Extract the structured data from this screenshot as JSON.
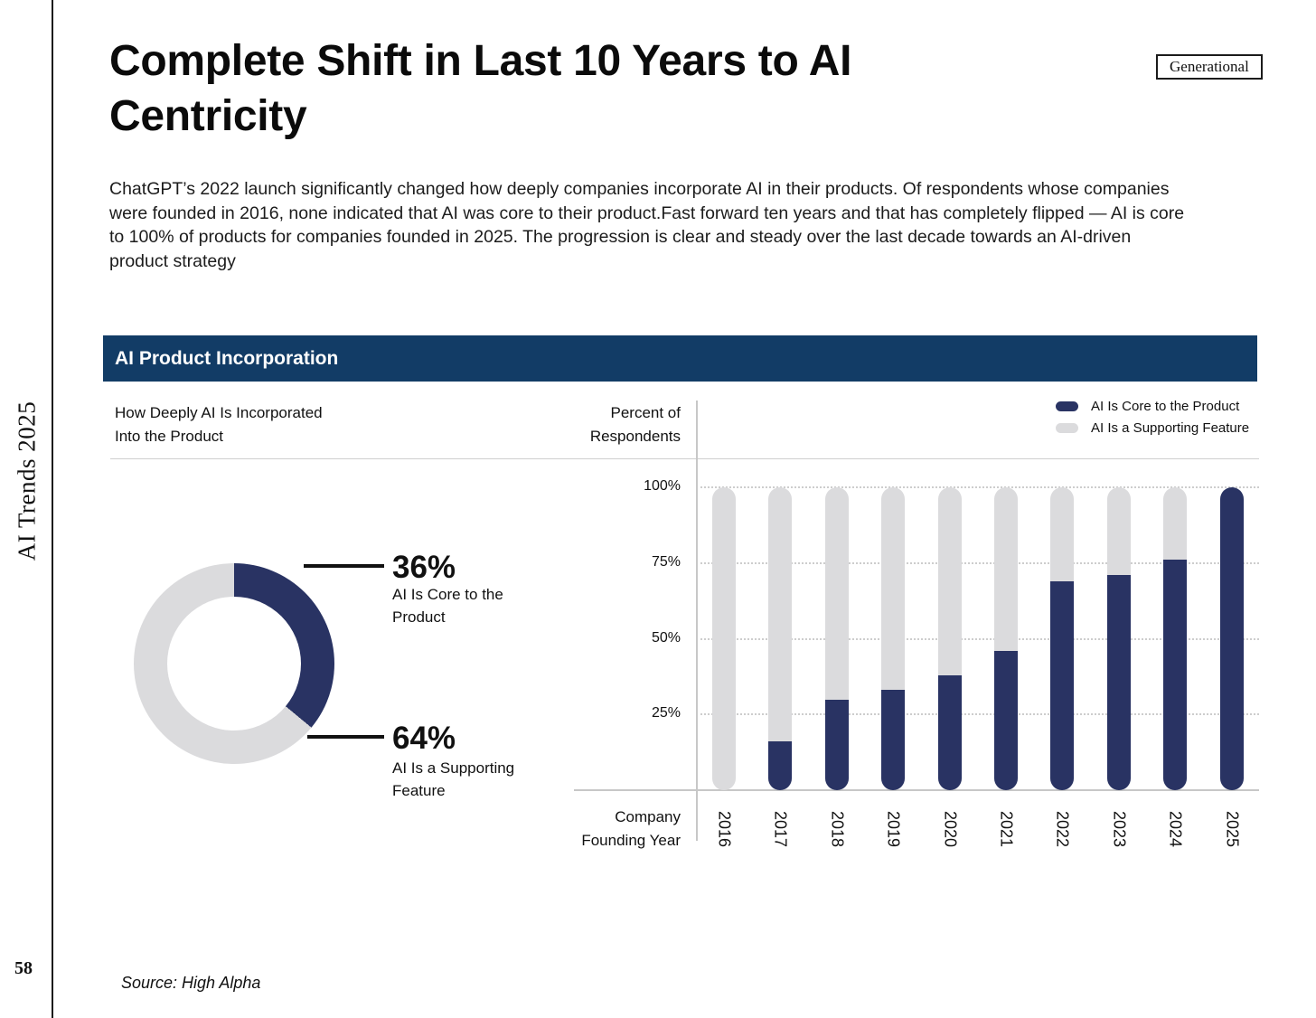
{
  "page": {
    "sidebar_title": "AI Trends 2025",
    "number": "58"
  },
  "badge_label": "Generational",
  "title": "Complete Shift in Last 10 Years to AI Centricity",
  "intro": "ChatGPT’s 2022 launch significantly changed how deeply companies incorporate AI in their products. Of respondents whose companies were founded in 2016, none indicated that AI was core to their product.Fast forward ten years and that has completely flipped — AI is core to 100% of products for companies founded in 2025. The progression is clear and steady over the last decade towards an AI-driven product strategy",
  "panel": {
    "header": "AI Product Incorporation",
    "left_subtitle_line1": "How Deeply AI Is Incorporated",
    "left_subtitle_line2": "Into the Product",
    "right_subtitle_line1": "Percent of",
    "right_subtitle_line2": "Respondents",
    "xaxis_label_line1": "Company",
    "xaxis_label_line2": "Founding Year"
  },
  "legend": [
    {
      "label": "AI Is Core to the Product",
      "color": "#293363"
    },
    {
      "label": "AI Is a Supporting Feature",
      "color": "#DBDBDD"
    }
  ],
  "donut": {
    "segments": [
      {
        "pct_label": "36%",
        "desc_line1": "AI Is Core to the",
        "desc_line2": "Product",
        "value": 36,
        "color": "#293363"
      },
      {
        "pct_label": "64%",
        "desc_line1": "AI Is a Supporting",
        "desc_line2": "Feature",
        "value": 64,
        "color": "#DBDBDD"
      }
    ]
  },
  "chart_data": [
    {
      "type": "pie",
      "subtype": "donut",
      "title": "How Deeply AI Is Incorporated Into the Product",
      "labels": [
        "AI Is Core to the Product",
        "AI Is a Supporting Feature"
      ],
      "values": [
        36,
        64
      ],
      "unit": "percent",
      "colors": [
        "#293363",
        "#DBDBDD"
      ],
      "start_angle_deg": 0,
      "direction": "clockwise"
    },
    {
      "type": "bar",
      "stacked": true,
      "title": "AI Product Incorporation",
      "xlabel": "Company Founding Year",
      "ylabel": "Percent of Respondents",
      "ylim": [
        0,
        100
      ],
      "grid": "dotted-horizontal",
      "legend_position": "top-right",
      "yticks": [
        {
          "label": "100%",
          "value": 100
        },
        {
          "label": "75%",
          "value": 75
        },
        {
          "label": "50%",
          "value": 50
        },
        {
          "label": "25%",
          "value": 25
        }
      ],
      "categories": [
        "2016",
        "2017",
        "2018",
        "2019",
        "2020",
        "2021",
        "2022",
        "2023",
        "2024",
        "2025"
      ],
      "series": [
        {
          "name": "AI Is Core to the Product",
          "color": "#293363",
          "values": [
            0,
            16,
            30,
            33,
            38,
            46,
            69,
            71,
            76,
            100
          ]
        },
        {
          "name": "AI Is a Supporting Feature",
          "color": "#DBDBDD",
          "values": [
            100,
            84,
            70,
            67,
            62,
            54,
            31,
            29,
            24,
            0
          ]
        }
      ]
    }
  ],
  "source": "Source: High Alpha",
  "colors": {
    "panel_header_bg": "#123C66",
    "panel_header_text": "#FFFFFF",
    "core_navy": "#293363",
    "supporting_gray": "#DBDBDD",
    "gridline": "#CDCDCD",
    "axis_line": "#C7C7C7",
    "callout_black": "#111111",
    "rail_black": "#1B1B1B"
  }
}
